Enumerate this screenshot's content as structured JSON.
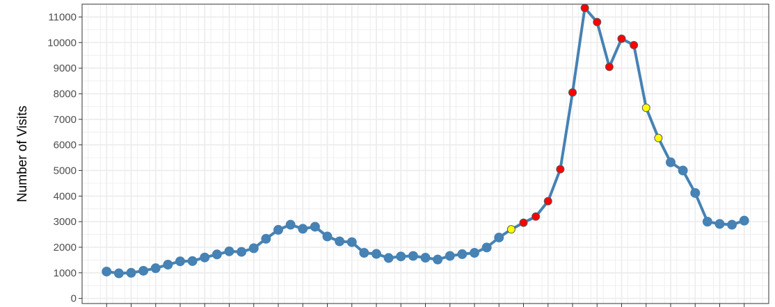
{
  "chart_data": {
    "type": "line",
    "title": "",
    "xlabel": "",
    "ylabel": "Number of Visits",
    "ylim": [
      -200,
      11500
    ],
    "yticks": [
      0,
      1000,
      2000,
      3000,
      4000,
      5000,
      6000,
      7000,
      8000,
      9000,
      10000,
      11000
    ],
    "ytick_labels": [
      "0",
      "1000",
      "2000",
      "3000",
      "4000",
      "5000",
      "6000",
      "7000",
      "8000",
      "9000",
      "10000",
      "11000"
    ],
    "x": [
      1,
      2,
      3,
      4,
      5,
      6,
      7,
      8,
      9,
      10,
      11,
      12,
      13,
      14,
      15,
      16,
      17,
      18,
      19,
      20,
      21,
      22,
      23,
      24,
      25,
      26,
      27,
      28,
      29,
      30,
      31,
      32,
      33,
      34,
      35,
      36,
      37,
      38,
      39,
      40,
      41,
      42,
      43,
      44,
      45,
      46,
      47,
      48,
      49,
      50,
      51,
      52,
      53
    ],
    "xlim": [
      -1,
      55
    ],
    "grid": true,
    "series": [
      {
        "values": [
          1050,
          980,
          1000,
          1080,
          1180,
          1320,
          1450,
          1460,
          1600,
          1720,
          1840,
          1820,
          1960,
          2330,
          2680,
          2880,
          2720,
          2800,
          2420,
          2230,
          2200,
          1780,
          1740,
          1580,
          1640,
          1660,
          1590,
          1520,
          1660,
          1730,
          1780,
          1990,
          2380,
          2700,
          2960,
          3200,
          3800,
          5050,
          8050,
          11350,
          10800,
          9050,
          10150,
          9900,
          7450,
          6270,
          5320,
          5000,
          4120,
          3000,
          2910,
          2880,
          3040
        ],
        "point_colors": [
          "#4682b4",
          "#4682b4",
          "#4682b4",
          "#4682b4",
          "#4682b4",
          "#4682b4",
          "#4682b4",
          "#4682b4",
          "#4682b4",
          "#4682b4",
          "#4682b4",
          "#4682b4",
          "#4682b4",
          "#4682b4",
          "#4682b4",
          "#4682b4",
          "#4682b4",
          "#4682b4",
          "#4682b4",
          "#4682b4",
          "#4682b4",
          "#4682b4",
          "#4682b4",
          "#4682b4",
          "#4682b4",
          "#4682b4",
          "#4682b4",
          "#4682b4",
          "#4682b4",
          "#4682b4",
          "#4682b4",
          "#4682b4",
          "#4682b4",
          "#ffff00",
          "#ff0000",
          "#ff0000",
          "#ff0000",
          "#ff0000",
          "#ff0000",
          "#ff0000",
          "#ff0000",
          "#ff0000",
          "#ff0000",
          "#ff0000",
          "#ffff00",
          "#ffff00",
          "#4682b4",
          "#4682b4",
          "#4682b4",
          "#4682b4",
          "#4682b4",
          "#4682b4",
          "#4682b4"
        ]
      }
    ],
    "colors": {
      "line": "#4682b4",
      "normal_point": "#4682b4",
      "highlight_red": "#ff0000",
      "highlight_yellow": "#ffff00",
      "grid": "#ebebeb",
      "panel_border": "#333333",
      "tick_text": "#4d4d4d"
    }
  }
}
